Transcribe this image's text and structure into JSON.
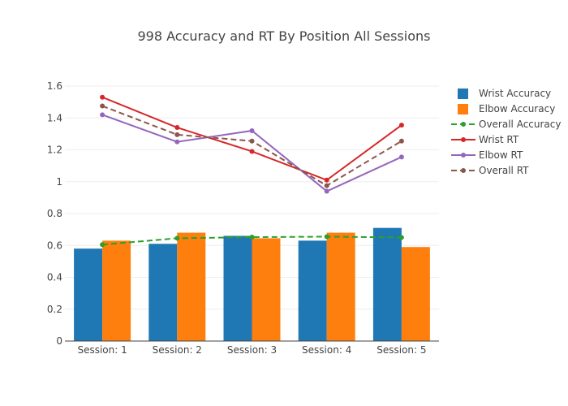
{
  "chart_data": {
    "type": "bar",
    "title": "998 Accuracy and RT By Position All Sessions",
    "xlabel": "",
    "ylabel": "",
    "categories": [
      "Session: 1",
      "Session: 2",
      "Session: 3",
      "Session: 4",
      "Session: 5"
    ],
    "ylim": [
      0,
      1.6
    ],
    "yticks": [
      0,
      0.2,
      0.4,
      0.6,
      0.8,
      1,
      1.2,
      1.4,
      1.6
    ],
    "ytick_labels": [
      "0",
      "0.2",
      "0.4",
      "0.6",
      "0.8",
      "1",
      "1.2",
      "1.4",
      "1.6"
    ],
    "grid": true,
    "legend_position": "right",
    "bar_series": [
      {
        "name": "Wrist Accuracy",
        "color": "#1f77b4",
        "values": [
          0.58,
          0.61,
          0.66,
          0.63,
          0.71
        ]
      },
      {
        "name": "Elbow Accuracy",
        "color": "#ff7f0e",
        "values": [
          0.63,
          0.68,
          0.645,
          0.68,
          0.59
        ]
      }
    ],
    "line_series": [
      {
        "name": "Overall Accuracy",
        "color": "#2ca02c",
        "dash": true,
        "values": [
          0.605,
          0.645,
          0.652,
          0.655,
          0.65
        ]
      },
      {
        "name": "Wrist RT",
        "color": "#d62728",
        "dash": false,
        "values": [
          1.53,
          1.34,
          1.19,
          1.01,
          1.355
        ]
      },
      {
        "name": "Elbow RT",
        "color": "#9467bd",
        "dash": false,
        "values": [
          1.42,
          1.25,
          1.32,
          0.94,
          1.155
        ]
      },
      {
        "name": "Overall RT",
        "color": "#8c564b",
        "dash": true,
        "values": [
          1.475,
          1.295,
          1.255,
          0.975,
          1.255
        ]
      }
    ]
  }
}
